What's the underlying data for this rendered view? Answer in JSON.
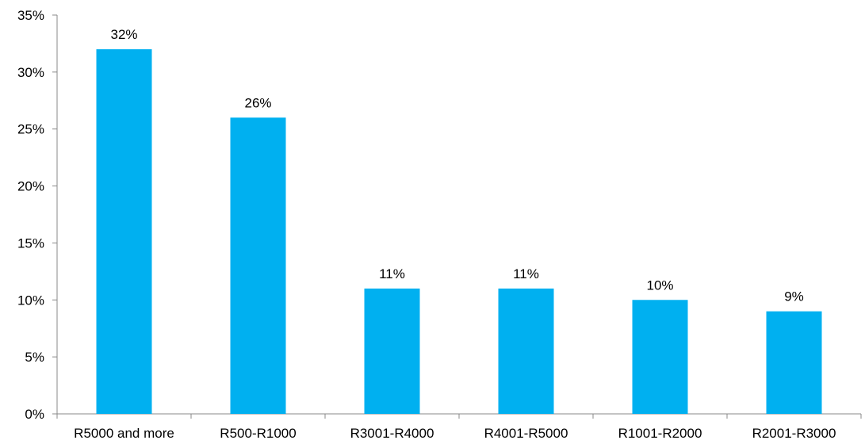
{
  "chart_data": {
    "type": "bar",
    "categories": [
      "R5000 and more",
      "R500-R1000",
      "R3001-R4000",
      "R4001-R5000",
      "R1001-R2000",
      "R2001-R3000"
    ],
    "values": [
      32,
      26,
      11,
      11,
      10,
      9
    ],
    "data_labels": [
      "32%",
      "26%",
      "11%",
      "11%",
      "10%",
      "9%"
    ],
    "ylim": [
      0,
      35
    ],
    "y_ticks": [
      0,
      5,
      10,
      15,
      20,
      25,
      30,
      35
    ],
    "y_tick_labels": [
      "0%",
      "5%",
      "10%",
      "15%",
      "20%",
      "25%",
      "30%",
      "35%"
    ],
    "grid": false,
    "legend": "none",
    "colors": {
      "bar": "#00B0F0",
      "axis": "#898989"
    }
  }
}
